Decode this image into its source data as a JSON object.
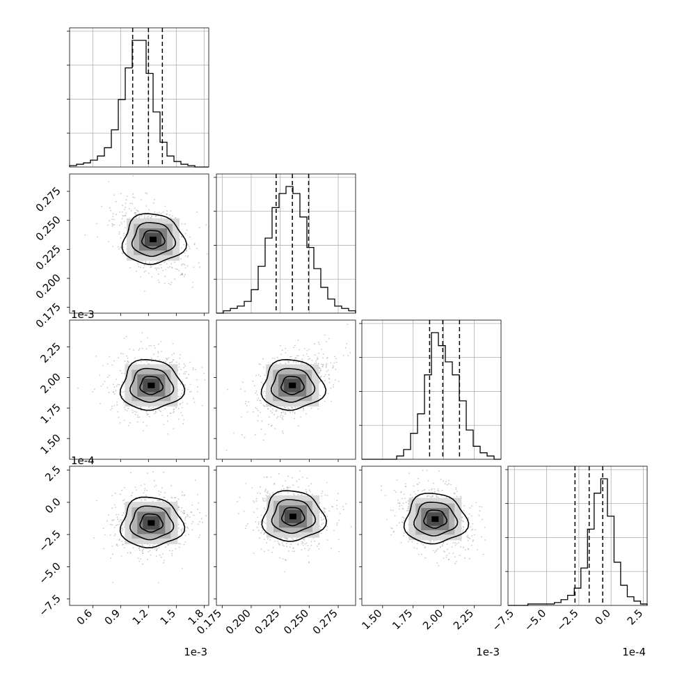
{
  "chart_data": {
    "type": "corner",
    "parameters": [
      {
        "offset": "1e-3",
        "range": [
          0.35,
          1.85
        ],
        "ticks": [
          0.6,
          0.9,
          1.2,
          1.5,
          1.8
        ],
        "tick_labels": [
          "0.6",
          "0.9",
          "1.2",
          "1.5",
          "1.8"
        ],
        "quantiles": [
          1.03,
          1.2,
          1.35
        ],
        "hist": [
          1,
          2,
          3,
          5,
          8,
          14,
          27,
          49,
          72,
          92,
          92,
          68,
          40,
          18,
          8,
          4,
          2,
          1,
          0,
          0
        ]
      },
      {
        "offset": "",
        "range": [
          0.17,
          0.29
        ],
        "ticks": [
          0.175,
          0.2,
          0.225,
          0.25,
          0.275
        ],
        "tick_labels": [
          "0.175",
          "0.200",
          "0.225",
          "0.250",
          "0.275"
        ],
        "quantiles": [
          0.2215,
          0.2355,
          0.2495
        ],
        "hist": [
          0,
          1,
          2,
          3,
          5,
          10,
          20,
          32,
          45,
          51,
          54,
          51,
          41,
          28,
          19,
          11,
          6,
          3,
          2,
          1
        ]
      },
      {
        "offset": "1e-3",
        "range": [
          1.33,
          2.47
        ],
        "ticks": [
          1.5,
          1.75,
          2.0,
          2.25
        ],
        "tick_labels": [
          "1.50",
          "1.75",
          "2.00",
          "2.25"
        ],
        "quantiles": [
          1.885,
          1.993,
          2.13
        ],
        "hist": [
          0,
          0,
          0,
          0,
          0,
          1,
          3,
          8,
          14,
          26,
          39,
          35,
          30,
          26,
          18,
          9,
          4,
          2,
          1,
          0
        ]
      },
      {
        "offset": "1e-4",
        "range": [
          -8.0,
          2.8
        ],
        "ticks": [
          -7.5,
          -5.0,
          -2.5,
          0.0,
          2.5
        ],
        "tick_labels": [
          "−7.5",
          "−5.0",
          "−2.5",
          "0.0",
          "2.5"
        ],
        "quantiles": [
          -2.8,
          -1.7,
          -0.65
        ],
        "hist": [
          0,
          0,
          0,
          1,
          1,
          1,
          1,
          2,
          4,
          7,
          12,
          26,
          53,
          78,
          88,
          62,
          30,
          14,
          6,
          3,
          1
        ]
      }
    ],
    "scatter_panels": [
      {
        "x_param": 0,
        "y_param": 1,
        "peak": [
          1.25,
          0.2335
        ]
      },
      {
        "x_param": 0,
        "y_param": 2,
        "peak": [
          1.23,
          1.935
        ]
      },
      {
        "x_param": 1,
        "y_param": 2,
        "peak": [
          0.2355,
          1.935
        ]
      },
      {
        "x_param": 0,
        "y_param": 3,
        "peak": [
          1.23,
          -1.6
        ]
      },
      {
        "x_param": 1,
        "y_param": 3,
        "peak": [
          0.236,
          -1.1
        ]
      },
      {
        "x_param": 2,
        "y_param": 3,
        "peak": [
          1.93,
          -1.3
        ]
      }
    ],
    "grid": true,
    "title": "",
    "xlabel": "",
    "ylabel": ""
  }
}
